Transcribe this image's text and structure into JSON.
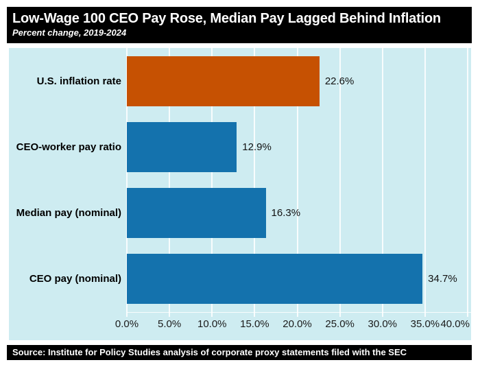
{
  "header": {
    "title": "Low-Wage 100 CEO Pay Rose, Median Pay Lagged Behind Inflation",
    "subtitle": "Percent change, 2019-2024"
  },
  "footer": {
    "source": "Source: Institute for Policy Studies analysis of corporate proxy statements filed with the SEC"
  },
  "colors": {
    "inflation_bar": "#C65102",
    "pay_bar": "#1472AD",
    "plot_background": "#CEECF1",
    "gridline": "rgba(255,255,255,0.85)",
    "panel_background": "#000000",
    "panel_text": "#ffffff"
  },
  "chart_data": {
    "type": "bar",
    "orientation": "horizontal",
    "title": "Low-Wage 100 CEO Pay Rose, Median Pay Lagged Behind Inflation",
    "subtitle": "Percent change, 2019-2024",
    "categories": [
      "U.S. inflation rate",
      "CEO-worker pay ratio",
      "Median pay (nominal)",
      "CEO pay (nominal)"
    ],
    "values": [
      22.6,
      12.9,
      16.3,
      34.7
    ],
    "value_labels": [
      "22.6%",
      "12.9%",
      "16.3%",
      "34.7%"
    ],
    "bar_colors": [
      "#C65102",
      "#1472AD",
      "#1472AD",
      "#1472AD"
    ],
    "x_ticks": [
      0,
      5,
      10,
      15,
      20,
      25,
      30,
      35,
      40
    ],
    "x_tick_labels": [
      "0.0%",
      "5.0%",
      "10.0%",
      "15.0%",
      "20.0%",
      "25.0%",
      "30.0%",
      "35.0%",
      "40.0%"
    ],
    "xlim": [
      0,
      40.4
    ],
    "xlabel": "",
    "ylabel": "",
    "grid": true,
    "legend": false
  }
}
